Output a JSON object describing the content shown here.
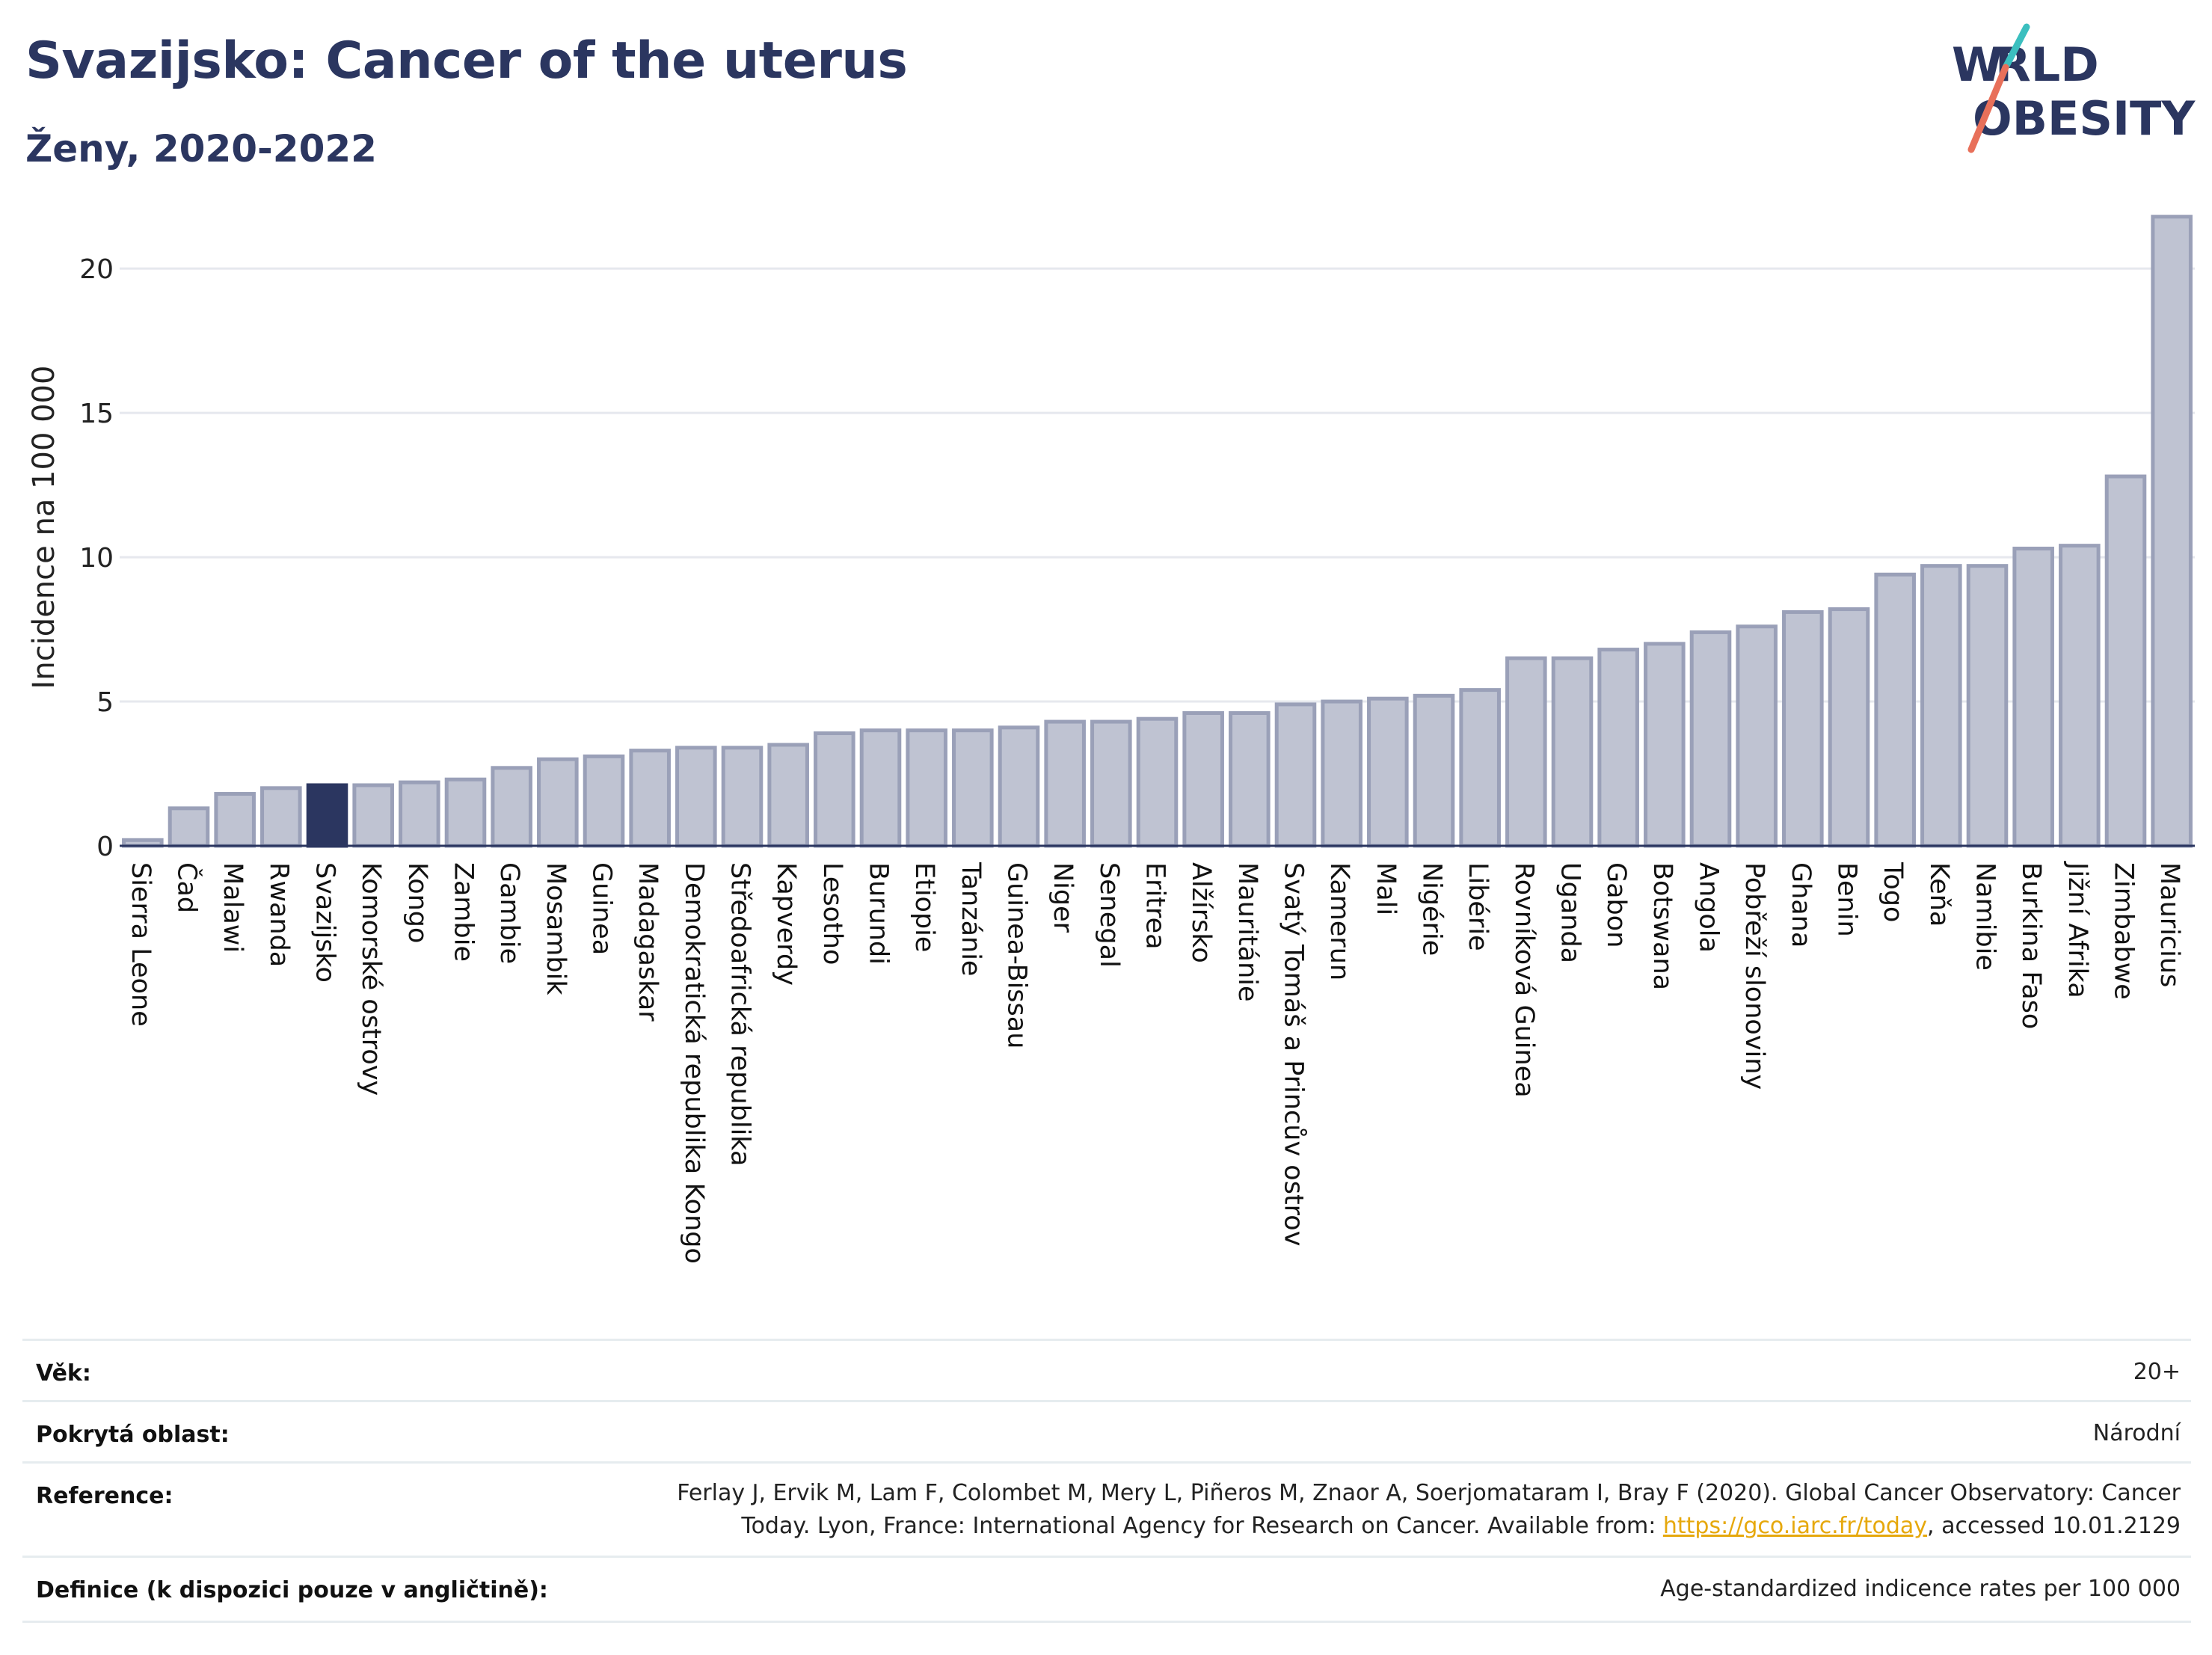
{
  "header": {
    "title": "Svazijsko: Cancer of the uterus",
    "subtitle": "Ženy, 2020-2022",
    "logo_text": "WORLD OBESITY"
  },
  "colors": {
    "bar": "#bfc3d2",
    "bar_border": "#9aa0b8",
    "highlight": "#2b3660",
    "title": "#2b3660",
    "grid": "#e6e8ee",
    "axis": "#2b3660"
  },
  "chart_data": {
    "type": "bar",
    "ylabel": "Incidence na 100 000",
    "xlabel": "",
    "ylim": [
      0,
      22
    ],
    "yticks": [
      0,
      5,
      10,
      15,
      20
    ],
    "grid": true,
    "highlight": "Svazijsko",
    "categories": [
      "Sierra Leone",
      "Čad",
      "Malawi",
      "Rwanda",
      "Svazijsko",
      "Komorské ostrovy",
      "Kongo",
      "Zambie",
      "Gambie",
      "Mosambik",
      "Guinea",
      "Madagaskar",
      "Demokratická republika Kongo",
      "Středoafrická republika",
      "Kapverdy",
      "Lesotho",
      "Burundi",
      "Etiopie",
      "Tanzánie",
      "Guinea-Bissau",
      "Niger",
      "Senegal",
      "Eritrea",
      "Alžírsko",
      "Mauritánie",
      "Svatý Tomáš a Princův ostrov",
      "Kamerun",
      "Mali",
      "Nigérie",
      "Libérie",
      "Rovníková Guinea",
      "Uganda",
      "Gabon",
      "Botswana",
      "Angola",
      "Pobřeží slonoviny",
      "Ghana",
      "Benin",
      "Togo",
      "Keňa",
      "Namibie",
      "Burkina Faso",
      "Jižní Afrika",
      "Zimbabwe",
      "Mauricius"
    ],
    "values": [
      0.2,
      1.3,
      1.8,
      2.0,
      2.1,
      2.1,
      2.2,
      2.3,
      2.7,
      3.0,
      3.1,
      3.3,
      3.4,
      3.4,
      3.5,
      3.9,
      4.0,
      4.0,
      4.0,
      4.1,
      4.3,
      4.3,
      4.4,
      4.6,
      4.6,
      4.9,
      5.0,
      5.1,
      5.2,
      5.4,
      6.5,
      6.5,
      6.8,
      7.0,
      7.4,
      7.6,
      8.1,
      8.2,
      9.4,
      9.7,
      9.7,
      10.3,
      10.4,
      12.8,
      21.8
    ]
  },
  "meta": {
    "age_label": "Věk:",
    "age_value": "20+",
    "area_label": "Pokrytá oblast:",
    "area_value": "Národní",
    "reference_label": "Reference:",
    "reference_line1": "Ferlay J, Ervik M, Lam F, Colombet M, Mery L, Piñeros M, Znaor A, Soerjomataram I, Bray F (2020). Global Cancer Observatory: Cancer",
    "reference_line2_pre": "Today. Lyon, France: International Agency for Research on Cancer. Available from: ",
    "reference_link": "https://gco.iarc.fr/today",
    "reference_line2_post": ", accessed 10.01.2129",
    "definition_label": "Definice (k dispozici pouze v angličtině):",
    "definition_value": "Age-standardized indicence rates per 100 000"
  }
}
